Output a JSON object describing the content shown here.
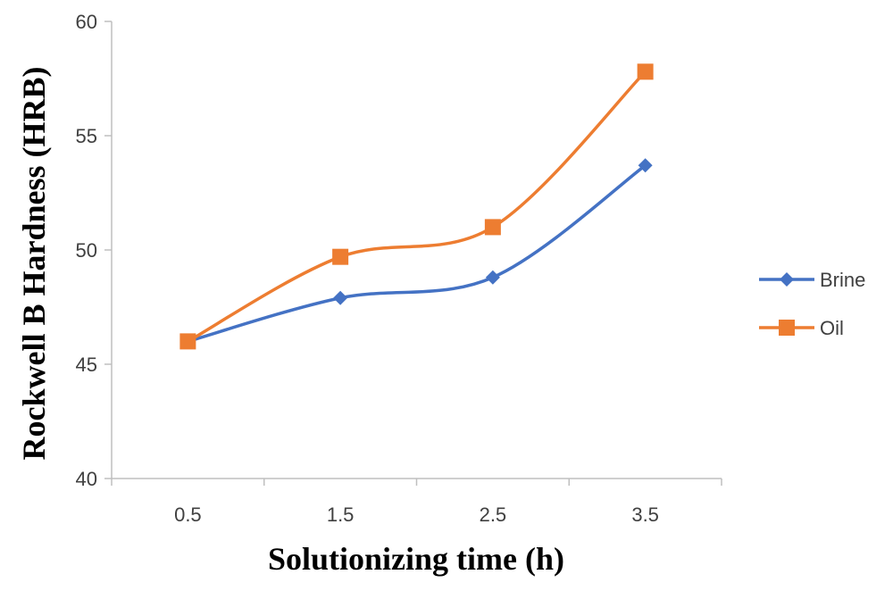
{
  "chart_data": {
    "type": "line",
    "xlabel": "Solutionizing time (h)",
    "ylabel": "Rockwell B Hardness (HRB)",
    "categories": [
      "0.5",
      "1.5",
      "2.5",
      "3.5"
    ],
    "ylim": [
      40,
      60
    ],
    "yticks": [
      "40",
      "45",
      "50",
      "55",
      "60"
    ],
    "grid": false,
    "legend_position": "right",
    "smooth": true,
    "series": [
      {
        "name": "Brine",
        "values": [
          46.0,
          47.9,
          48.8,
          53.7
        ],
        "color": "#4472C4",
        "marker": "diamond"
      },
      {
        "name": "Oil",
        "values": [
          46.0,
          49.7,
          51.0,
          57.8
        ],
        "color": "#ED7D31",
        "marker": "square"
      }
    ]
  }
}
